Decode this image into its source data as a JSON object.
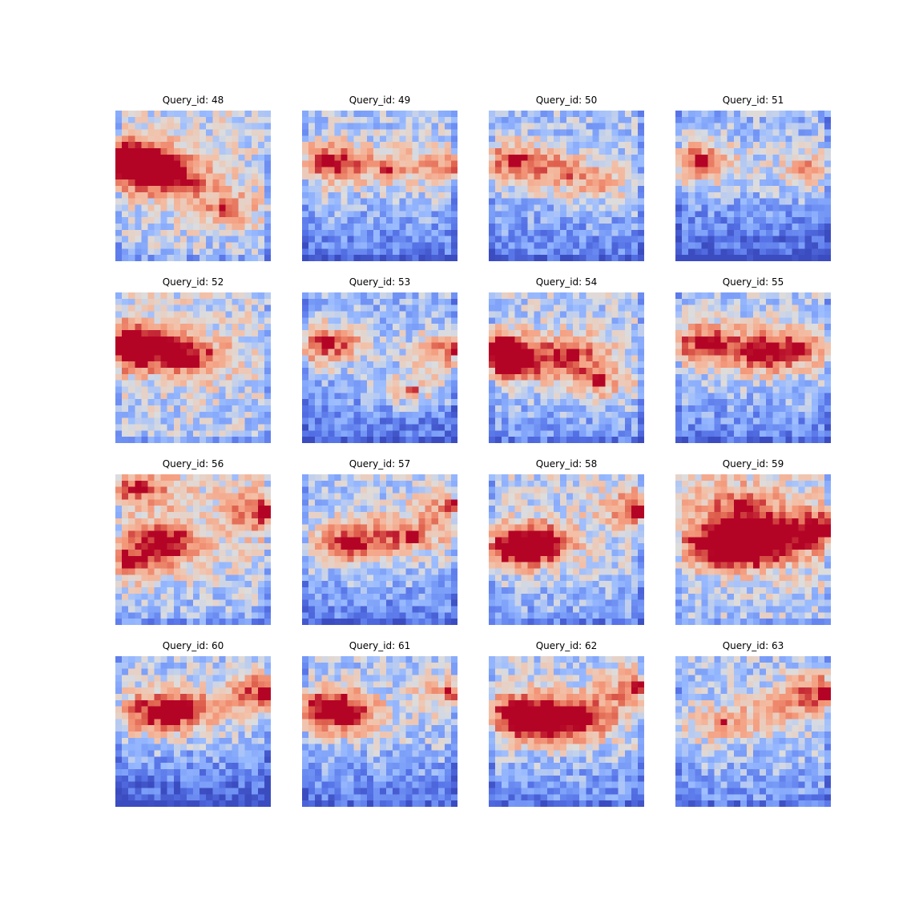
{
  "chart_data": {
    "type": "heatmap",
    "colormap": "coolwarm",
    "layout": {
      "rows": 4,
      "cols": 4
    },
    "grid": "off",
    "axes": "off",
    "grid_size": [
      24,
      24
    ],
    "panels": [
      {
        "title": "Query_id: 48",
        "seed": 48,
        "hot": [
          [
            0.15,
            0.34,
            1.0
          ],
          [
            0.35,
            0.44,
            0.95
          ],
          [
            0.04,
            0.34,
            0.85
          ],
          [
            0.7,
            0.65,
            0.5
          ]
        ],
        "base": 0.48,
        "cool_bottom": 0.1
      },
      {
        "title": "Query_id: 49",
        "seed": 49,
        "hot": [
          [
            0.17,
            0.34,
            0.95
          ],
          [
            0.98,
            0.36,
            0.6
          ],
          [
            0.55,
            0.38,
            0.45
          ]
        ],
        "base": 0.4,
        "cool_bottom": 0.3
      },
      {
        "title": "Query_id: 50",
        "seed": 50,
        "hot": [
          [
            0.17,
            0.34,
            0.95
          ],
          [
            0.7,
            0.5,
            0.4
          ],
          [
            0.5,
            0.4,
            0.4
          ]
        ],
        "base": 0.38,
        "cool_bottom": 0.25
      },
      {
        "title": "Query_id: 51",
        "seed": 51,
        "hot": [
          [
            0.17,
            0.34,
            0.95
          ],
          [
            0.85,
            0.38,
            0.5
          ]
        ],
        "base": 0.36,
        "cool_bottom": 0.4
      },
      {
        "title": "Query_id: 52",
        "seed": 52,
        "hot": [
          [
            0.18,
            0.34,
            1.0
          ],
          [
            0.5,
            0.44,
            0.8
          ],
          [
            0.05,
            0.38,
            0.8
          ]
        ],
        "base": 0.48,
        "cool_bottom": 0.1
      },
      {
        "title": "Query_id: 53",
        "seed": 53,
        "hot": [
          [
            0.16,
            0.34,
            1.0
          ],
          [
            0.98,
            0.38,
            0.85
          ],
          [
            0.7,
            0.65,
            0.5
          ]
        ],
        "base": 0.36,
        "cool_bottom": 0.3
      },
      {
        "title": "Query_id: 54",
        "seed": 54,
        "hot": [
          [
            0.05,
            0.38,
            1.0
          ],
          [
            0.55,
            0.4,
            0.75
          ],
          [
            0.2,
            0.48,
            0.8
          ],
          [
            0.7,
            0.6,
            0.6
          ]
        ],
        "base": 0.42,
        "cool_bottom": 0.2
      },
      {
        "title": "Query_id: 55",
        "seed": 55,
        "hot": [
          [
            0.18,
            0.34,
            0.95
          ],
          [
            0.56,
            0.4,
            0.8
          ],
          [
            0.78,
            0.36,
            0.6
          ]
        ],
        "base": 0.42,
        "cool_bottom": 0.3
      },
      {
        "title": "Query_id: 56",
        "seed": 56,
        "hot": [
          [
            0.3,
            0.45,
            1.0
          ],
          [
            0.97,
            0.25,
            0.8
          ],
          [
            0.15,
            0.1,
            0.65
          ],
          [
            0.1,
            0.6,
            0.6
          ]
        ],
        "base": 0.5,
        "cool_bottom": 0.2
      },
      {
        "title": "Query_id: 57",
        "seed": 57,
        "hot": [
          [
            0.32,
            0.45,
            1.0
          ],
          [
            0.7,
            0.4,
            0.6
          ],
          [
            0.97,
            0.2,
            0.6
          ]
        ],
        "base": 0.42,
        "cool_bottom": 0.3
      },
      {
        "title": "Query_id: 58",
        "seed": 58,
        "hot": [
          [
            0.3,
            0.45,
            1.0
          ],
          [
            0.18,
            0.5,
            0.85
          ],
          [
            0.97,
            0.23,
            0.8
          ]
        ],
        "base": 0.44,
        "cool_bottom": 0.2
      },
      {
        "title": "Query_id: 59",
        "seed": 59,
        "hot": [
          [
            0.58,
            0.4,
            1.0
          ],
          [
            0.3,
            0.45,
            0.95
          ],
          [
            0.45,
            0.5,
            0.9
          ],
          [
            0.95,
            0.37,
            0.85
          ],
          [
            0.4,
            0.2,
            0.6
          ]
        ],
        "base": 0.52,
        "cool_bottom": 0.15
      },
      {
        "title": "Query_id: 60",
        "seed": 60,
        "hot": [
          [
            0.25,
            0.37,
            0.9
          ],
          [
            0.97,
            0.24,
            1.0
          ],
          [
            0.45,
            0.36,
            0.7
          ]
        ],
        "base": 0.4,
        "cool_bottom": 0.45
      },
      {
        "title": "Query_id: 61",
        "seed": 61,
        "hot": [
          [
            0.18,
            0.34,
            1.0
          ],
          [
            0.97,
            0.24,
            0.6
          ],
          [
            0.3,
            0.4,
            0.6
          ]
        ],
        "base": 0.4,
        "cool_bottom": 0.3
      },
      {
        "title": "Query_id: 62",
        "seed": 62,
        "hot": [
          [
            0.3,
            0.45,
            1.0
          ],
          [
            0.58,
            0.41,
            1.0
          ],
          [
            0.97,
            0.22,
            0.7
          ],
          [
            0.2,
            0.35,
            0.7
          ]
        ],
        "base": 0.44,
        "cool_bottom": 0.3
      },
      {
        "title": "Query_id: 63",
        "seed": 63,
        "hot": [
          [
            0.97,
            0.24,
            1.0
          ],
          [
            0.3,
            0.45,
            0.5
          ],
          [
            0.65,
            0.35,
            0.45
          ]
        ],
        "base": 0.4,
        "cool_bottom": 0.2
      }
    ]
  }
}
